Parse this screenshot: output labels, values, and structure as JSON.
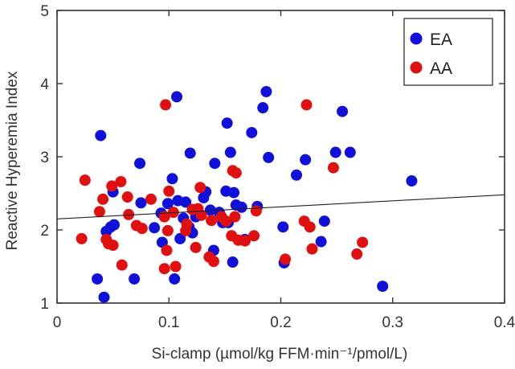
{
  "chart_data": {
    "type": "scatter",
    "xlabel": "Si-clamp (µmol/kg  FFM·min⁻¹/pmol/L)",
    "ylabel": "Reactive  Hyperemia  Index",
    "xlim": [
      0,
      0.4
    ],
    "ylim": [
      1,
      5
    ],
    "x_ticks": [
      0,
      0.1,
      0.2,
      0.3,
      0.4
    ],
    "x_tick_labels": [
      "0",
      "0.1",
      "0.2",
      "0.3",
      "0.4"
    ],
    "y_ticks": [
      1,
      2,
      3,
      4,
      5
    ],
    "y_tick_labels": [
      "1",
      "2",
      "3",
      "4",
      "5"
    ],
    "grid": false,
    "legend_position": "top-right",
    "colors": {
      "EA": "#1010d8",
      "AA": "#e01010",
      "trend": "#222222",
      "axes": "#333333"
    },
    "series": [
      {
        "name": "EA",
        "points": [
          [
            0.036,
            1.33
          ],
          [
            0.039,
            3.29
          ],
          [
            0.042,
            1.08
          ],
          [
            0.044,
            1.98
          ],
          [
            0.048,
            2.04
          ],
          [
            0.05,
            2.52
          ],
          [
            0.051,
            2.07
          ],
          [
            0.069,
            1.33
          ],
          [
            0.074,
            2.91
          ],
          [
            0.075,
            2.37
          ],
          [
            0.087,
            2.03
          ],
          [
            0.093,
            2.23
          ],
          [
            0.094,
            1.83
          ],
          [
            0.099,
            2.36
          ],
          [
            0.103,
            2.7
          ],
          [
            0.105,
            1.33
          ],
          [
            0.107,
            3.82
          ],
          [
            0.108,
            2.4
          ],
          [
            0.11,
            1.88
          ],
          [
            0.113,
            2.16
          ],
          [
            0.115,
            2.38
          ],
          [
            0.118,
            2.04
          ],
          [
            0.119,
            3.05
          ],
          [
            0.121,
            1.96
          ],
          [
            0.124,
            2.18
          ],
          [
            0.126,
            2.2
          ],
          [
            0.131,
            2.44
          ],
          [
            0.133,
            2.52
          ],
          [
            0.137,
            2.27
          ],
          [
            0.14,
            1.72
          ],
          [
            0.141,
            2.91
          ],
          [
            0.145,
            2.24
          ],
          [
            0.148,
            2.1
          ],
          [
            0.151,
            2.53
          ],
          [
            0.152,
            3.46
          ],
          [
            0.153,
            2.1
          ],
          [
            0.155,
            3.06
          ],
          [
            0.157,
            1.56
          ],
          [
            0.158,
            2.51
          ],
          [
            0.16,
            2.34
          ],
          [
            0.165,
            2.31
          ],
          [
            0.168,
            1.87
          ],
          [
            0.174,
            3.33
          ],
          [
            0.179,
            2.32
          ],
          [
            0.184,
            3.67
          ],
          [
            0.187,
            3.89
          ],
          [
            0.189,
            2.99
          ],
          [
            0.202,
            2.04
          ],
          [
            0.203,
            1.55
          ],
          [
            0.214,
            2.75
          ],
          [
            0.222,
            2.96
          ],
          [
            0.236,
            1.84
          ],
          [
            0.239,
            2.12
          ],
          [
            0.249,
            3.06
          ],
          [
            0.255,
            3.62
          ],
          [
            0.262,
            3.06
          ],
          [
            0.291,
            1.23
          ],
          [
            0.317,
            2.67
          ]
        ]
      },
      {
        "name": "AA",
        "points": [
          [
            0.022,
            1.88
          ],
          [
            0.025,
            2.68
          ],
          [
            0.038,
            2.25
          ],
          [
            0.041,
            2.42
          ],
          [
            0.044,
            1.87
          ],
          [
            0.046,
            1.81
          ],
          [
            0.049,
            2.6
          ],
          [
            0.05,
            1.79
          ],
          [
            0.057,
            2.66
          ],
          [
            0.058,
            1.52
          ],
          [
            0.063,
            2.45
          ],
          [
            0.064,
            2.21
          ],
          [
            0.071,
            2.06
          ],
          [
            0.076,
            2.02
          ],
          [
            0.084,
            2.42
          ],
          [
            0.096,
            1.47
          ],
          [
            0.096,
            2.18
          ],
          [
            0.097,
            3.71
          ],
          [
            0.098,
            1.72
          ],
          [
            0.099,
            1.99
          ],
          [
            0.1,
            2.53
          ],
          [
            0.104,
            2.24
          ],
          [
            0.106,
            1.5
          ],
          [
            0.115,
            1.99
          ],
          [
            0.116,
            2.08
          ],
          [
            0.121,
            2.28
          ],
          [
            0.124,
            1.76
          ],
          [
            0.126,
            2.29
          ],
          [
            0.128,
            2.58
          ],
          [
            0.129,
            2.2
          ],
          [
            0.136,
            1.63
          ],
          [
            0.138,
            2.13
          ],
          [
            0.14,
            1.57
          ],
          [
            0.147,
            2.18
          ],
          [
            0.151,
            2.12
          ],
          [
            0.156,
            1.92
          ],
          [
            0.157,
            2.81
          ],
          [
            0.159,
            2.18
          ],
          [
            0.16,
            2.78
          ],
          [
            0.162,
            1.86
          ],
          [
            0.168,
            1.85
          ],
          [
            0.176,
            1.92
          ],
          [
            0.178,
            2.26
          ],
          [
            0.204,
            1.6
          ],
          [
            0.221,
            2.12
          ],
          [
            0.223,
            3.71
          ],
          [
            0.226,
            2.04
          ],
          [
            0.228,
            1.74
          ],
          [
            0.247,
            2.85
          ],
          [
            0.268,
            1.67
          ],
          [
            0.273,
            1.83
          ]
        ]
      }
    ],
    "trendline": {
      "x": [
        0,
        0.4
      ],
      "y": [
        2.15,
        2.48
      ]
    },
    "legend": [
      {
        "label": "EA",
        "series": "EA"
      },
      {
        "label": "AA",
        "series": "AA"
      }
    ]
  }
}
